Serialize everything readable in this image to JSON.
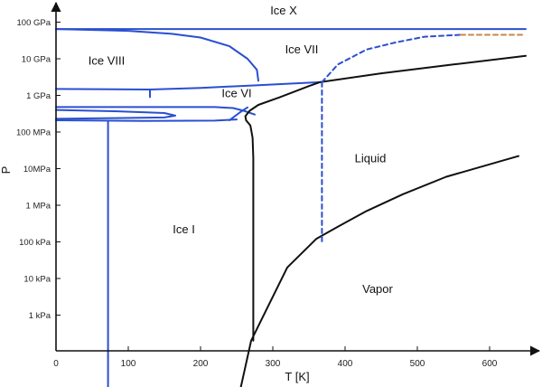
{
  "chart_data": {
    "type": "line",
    "xlabel": "T [K]",
    "ylabel": "P",
    "xlim": [
      0,
      660
    ],
    "x_ticks": [
      0,
      100,
      200,
      300,
      400,
      500,
      600
    ],
    "y_scale": "log",
    "y_ticks": [
      {
        "label": "1 kPa",
        "value": 1000
      },
      {
        "label": "10 kPa",
        "value": 10000
      },
      {
        "label": "100 kPa",
        "value": 100000
      },
      {
        "label": "1 MPa",
        "value": 1000000
      },
      {
        "label": "10MPa",
        "value": 10000000
      },
      {
        "label": "100 MPa",
        "value": 100000000
      },
      {
        "label": "1 GPa",
        "value": 1000000000
      },
      {
        "label": "10 GPa",
        "value": 10000000000
      },
      {
        "label": "100 GPa",
        "value": 100000000000
      }
    ],
    "regions": [
      {
        "label": "Ice X",
        "T": 315,
        "P": 160000000000
      },
      {
        "label": "Ice VII",
        "T": 340,
        "P": 14000000000
      },
      {
        "label": "Ice VIII",
        "T": 70,
        "P": 7000000000
      },
      {
        "label": "Ice VI",
        "T": 250,
        "P": 900000000
      },
      {
        "label": "Liquid",
        "T": 435,
        "P": 15000000
      },
      {
        "label": "Ice I",
        "T": 177,
        "P": 170000
      },
      {
        "label": "Vapor",
        "T": 445,
        "P": 4000
      }
    ],
    "series": [
      {
        "key": "icex_boundary",
        "color": "#2a4fd0",
        "style": "solid",
        "points": [
          [
            0,
            65000000000
          ],
          [
            650,
            65000000000
          ]
        ]
      },
      {
        "key": "ice_viii_vii",
        "color": "#2a4fd0",
        "style": "solid",
        "points": [
          [
            0,
            65000000000
          ],
          [
            100,
            58000000000
          ],
          [
            160,
            48000000000
          ],
          [
            200,
            38000000000
          ],
          [
            240,
            22000000000
          ],
          [
            265,
            10000000000
          ],
          [
            278,
            5000000000
          ],
          [
            280,
            2500000000
          ]
        ]
      },
      {
        "key": "ice_viii_vi_line",
        "color": "#2a4fd0",
        "style": "solid",
        "points": [
          [
            0,
            1500000000
          ],
          [
            130,
            1450000000
          ],
          [
            200,
            1600000000
          ],
          [
            280,
            1900000000
          ],
          [
            365,
            2300000000
          ]
        ]
      },
      {
        "key": "ice_viii_small",
        "color": "#2a4fd0",
        "style": "solid",
        "points": [
          [
            130,
            1450000000
          ],
          [
            130,
            900000000
          ]
        ]
      },
      {
        "key": "ice_layer_1",
        "color": "#2a4fd0",
        "style": "solid",
        "points": [
          [
            0,
            480000000
          ],
          [
            220,
            480000000
          ],
          [
            245,
            450000000
          ],
          [
            260,
            380000000
          ],
          [
            275,
            300000000
          ]
        ]
      },
      {
        "key": "ice_loop",
        "color": "#2a4fd0",
        "style": "solid",
        "points": [
          [
            0,
            400000000
          ],
          [
            80,
            370000000
          ],
          [
            150,
            330000000
          ],
          [
            165,
            280000000
          ],
          [
            150,
            250000000
          ],
          [
            80,
            240000000
          ],
          [
            0,
            230000000
          ]
        ]
      },
      {
        "key": "ice_layer_base",
        "color": "#2a4fd0",
        "style": "solid",
        "points": [
          [
            0,
            210000000
          ],
          [
            120,
            200000000
          ],
          [
            220,
            205000000
          ],
          [
            250,
            220000000
          ]
        ]
      },
      {
        "key": "ice_mid_join",
        "color": "#2a4fd0",
        "style": "solid",
        "points": [
          [
            240,
            210000000
          ],
          [
            255,
            350000000
          ],
          [
            265,
            470000000
          ]
        ]
      },
      {
        "key": "ice_i_left_boundary",
        "color": "#2a4fd0",
        "style": "solid",
        "points": [
          [
            72,
            200000000
          ],
          [
            72,
            5
          ]
        ]
      },
      {
        "key": "vapor_curve",
        "color": "#111111",
        "style": "solid",
        "points": [
          [
            252,
            5
          ],
          [
            270,
            200
          ],
          [
            285,
            800
          ],
          [
            320,
            20000
          ],
          [
            360,
            120000
          ],
          [
            390,
            260000
          ],
          [
            430,
            700000
          ],
          [
            480,
            2000000
          ],
          [
            540,
            6000000
          ],
          [
            640,
            22000000
          ]
        ]
      },
      {
        "key": "melting_curve",
        "color": "#111111",
        "style": "solid",
        "points": [
          [
            273,
            200
          ],
          [
            273,
            20000000
          ],
          [
            272,
            70000000
          ],
          [
            269,
            150000000
          ],
          [
            263,
            210000000
          ],
          [
            262,
            270000000
          ],
          [
            268,
            380000000
          ],
          [
            280,
            550000000
          ],
          [
            310,
            900000000
          ],
          [
            350,
            1800000000
          ],
          [
            365,
            2300000000
          ]
        ]
      },
      {
        "key": "ice_vii_liquid",
        "color": "#111111",
        "style": "solid",
        "points": [
          [
            365,
            2300000000
          ],
          [
            450,
            4000000000
          ],
          [
            550,
            7000000000
          ],
          [
            650,
            12000000000
          ]
        ]
      },
      {
        "key": "dashed_vertical",
        "color": "#2a4fd0",
        "style": "dashed",
        "points": [
          [
            368,
            2300000000
          ],
          [
            368,
            100000
          ]
        ]
      },
      {
        "key": "dashed_upper",
        "color": "#2a4fd0",
        "style": "dashed",
        "points": [
          [
            368,
            2300000000
          ],
          [
            390,
            7000000000
          ],
          [
            430,
            18000000000
          ],
          [
            470,
            28000000000
          ],
          [
            510,
            40000000000
          ],
          [
            560,
            45000000000
          ]
        ]
      },
      {
        "key": "dashed_orange",
        "color": "#c8874a",
        "style": "dashed",
        "points": [
          [
            560,
            45000000000
          ],
          [
            650,
            45000000000
          ]
        ]
      }
    ]
  }
}
